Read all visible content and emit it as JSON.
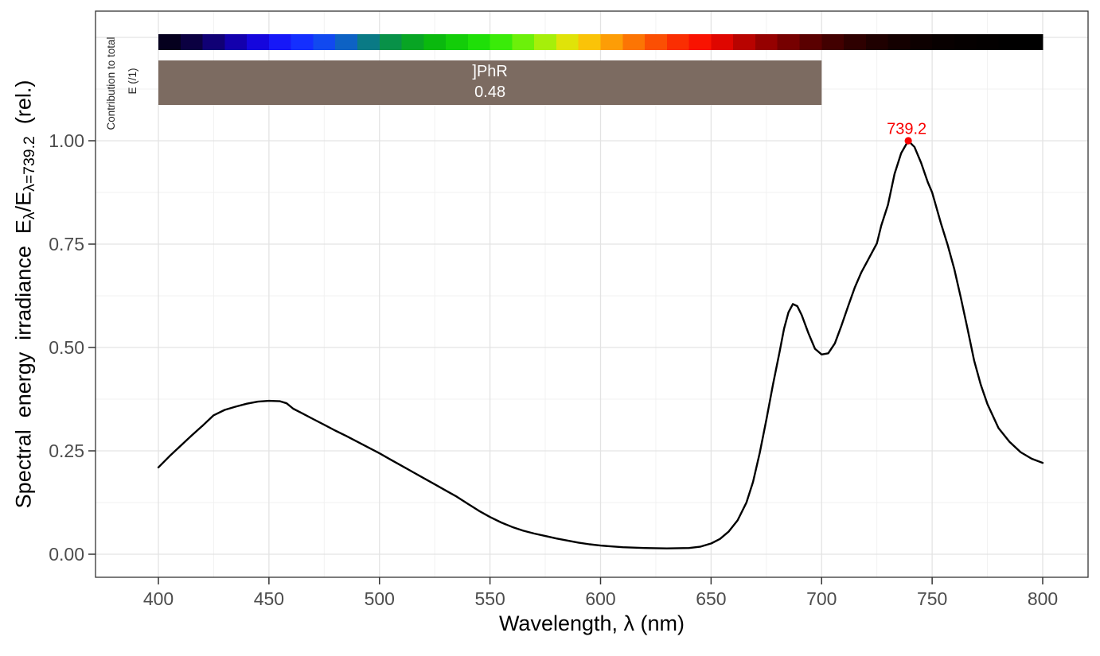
{
  "chart_data": {
    "type": "line",
    "title": "",
    "xlabel": "Wavelength, λ (nm)",
    "ylabel_parts": [
      {
        "t": "Spectral  energy  irradiance  "
      },
      {
        "t": "E"
      },
      {
        "t": "λ",
        "sub": true
      },
      {
        "t": "/E"
      },
      {
        "t": "λ=739.2",
        "sub": true
      },
      {
        "t": "  (rel.)"
      }
    ],
    "x_ticks": [
      400,
      450,
      500,
      550,
      600,
      650,
      700,
      750,
      800
    ],
    "y_ticks": [
      {
        "value": 0.0,
        "label": "0.00"
      },
      {
        "value": 0.25,
        "label": "0.25"
      },
      {
        "value": 0.5,
        "label": "0.50"
      },
      {
        "value": 0.75,
        "label": "0.75"
      },
      {
        "value": 1.0,
        "label": "1.00"
      }
    ],
    "xlim": [
      371.5,
      820.2
    ],
    "ylim": [
      -0.056,
      1.314
    ],
    "grid": true,
    "series_name": "spectral energy irradiance (relative)",
    "line_color": "#000000",
    "points": [
      [
        400,
        0.21
      ],
      [
        405,
        0.237
      ],
      [
        410,
        0.262
      ],
      [
        415,
        0.287
      ],
      [
        420,
        0.311
      ],
      [
        425,
        0.336
      ],
      [
        430,
        0.349
      ],
      [
        435,
        0.357
      ],
      [
        440,
        0.364
      ],
      [
        445,
        0.369
      ],
      [
        450,
        0.371
      ],
      [
        455,
        0.37
      ],
      [
        458,
        0.365
      ],
      [
        461,
        0.352
      ],
      [
        465,
        0.341
      ],
      [
        470,
        0.327
      ],
      [
        475,
        0.313
      ],
      [
        480,
        0.299
      ],
      [
        485,
        0.286
      ],
      [
        490,
        0.272
      ],
      [
        495,
        0.258
      ],
      [
        500,
        0.244
      ],
      [
        505,
        0.229
      ],
      [
        510,
        0.214
      ],
      [
        515,
        0.199
      ],
      [
        520,
        0.184
      ],
      [
        525,
        0.169
      ],
      [
        530,
        0.154
      ],
      [
        535,
        0.139
      ],
      [
        540,
        0.122
      ],
      [
        545,
        0.105
      ],
      [
        550,
        0.09
      ],
      [
        555,
        0.077
      ],
      [
        560,
        0.066
      ],
      [
        565,
        0.057
      ],
      [
        570,
        0.05
      ],
      [
        575,
        0.044
      ],
      [
        580,
        0.038
      ],
      [
        585,
        0.033
      ],
      [
        590,
        0.028
      ],
      [
        595,
        0.024
      ],
      [
        600,
        0.021
      ],
      [
        610,
        0.017
      ],
      [
        620,
        0.015
      ],
      [
        630,
        0.014
      ],
      [
        640,
        0.015
      ],
      [
        645,
        0.018
      ],
      [
        650,
        0.026
      ],
      [
        654,
        0.037
      ],
      [
        658,
        0.055
      ],
      [
        662,
        0.082
      ],
      [
        666,
        0.125
      ],
      [
        669,
        0.175
      ],
      [
        672,
        0.245
      ],
      [
        675,
        0.325
      ],
      [
        678,
        0.41
      ],
      [
        681,
        0.49
      ],
      [
        683,
        0.545
      ],
      [
        685,
        0.585
      ],
      [
        687,
        0.605
      ],
      [
        689,
        0.6
      ],
      [
        691,
        0.578
      ],
      [
        694,
        0.535
      ],
      [
        697,
        0.497
      ],
      [
        700,
        0.483
      ],
      [
        703,
        0.486
      ],
      [
        706,
        0.51
      ],
      [
        709,
        0.553
      ],
      [
        712,
        0.6
      ],
      [
        715,
        0.645
      ],
      [
        718,
        0.682
      ],
      [
        721,
        0.712
      ],
      [
        725,
        0.752
      ],
      [
        727,
        0.795
      ],
      [
        730,
        0.845
      ],
      [
        733,
        0.92
      ],
      [
        736,
        0.97
      ],
      [
        739.2,
        1.0
      ],
      [
        742,
        0.985
      ],
      [
        745,
        0.947
      ],
      [
        748,
        0.9
      ],
      [
        750,
        0.875
      ],
      [
        754,
        0.8
      ],
      [
        757,
        0.748
      ],
      [
        760,
        0.69
      ],
      [
        763,
        0.62
      ],
      [
        766,
        0.545
      ],
      [
        769,
        0.468
      ],
      [
        772,
        0.41
      ],
      [
        775,
        0.363
      ],
      [
        780,
        0.305
      ],
      [
        785,
        0.272
      ],
      [
        790,
        0.247
      ],
      [
        795,
        0.231
      ],
      [
        800,
        0.221
      ]
    ],
    "peak_annotation": {
      "label": "739.2",
      "x": 739.2,
      "y": 1.0,
      "color": "#f80000"
    },
    "spectrum_bar": {
      "range": [
        400,
        800
      ],
      "step": 10,
      "colors": [
        "#05001e",
        "#0b0041",
        "#100075",
        "#1300ad",
        "#1506dd",
        "#1618f8",
        "#142fff",
        "#1149f0",
        "#0d62c4",
        "#0a7a85",
        "#089148",
        "#08a524",
        "#0ab90e",
        "#13cd09",
        "#1fdf08",
        "#3aeb09",
        "#6cf00a",
        "#a6ef0a",
        "#e0e309",
        "#fac308",
        "#fd9d06",
        "#fc7504",
        "#fb4f03",
        "#fa2e02",
        "#f91301",
        "#df0600",
        "#b80300",
        "#950100",
        "#760000",
        "#5a0000",
        "#420000",
        "#2e0000",
        "#1f0000",
        "#140000",
        "#0d0000",
        "#080000",
        "#050000",
        "#030000",
        "#010000",
        "#000000"
      ]
    },
    "wband_bar": {
      "label": "]PhR",
      "value": "0.48",
      "range": [
        400,
        700
      ],
      "fill": "#7c6b61",
      "text_color": "#ffffff"
    },
    "side_labels": [
      {
        "text": "Contribution to total"
      },
      {
        "text": "E  (/1)"
      }
    ]
  },
  "style": {
    "grid_major_color": "#e3e3e3",
    "grid_minor_color": "#f0f0f0",
    "panel_border_color": "#343434",
    "tick_color": "#343434",
    "tick_label_color": "#4d4d4d",
    "side_label_color": "#262626"
  }
}
